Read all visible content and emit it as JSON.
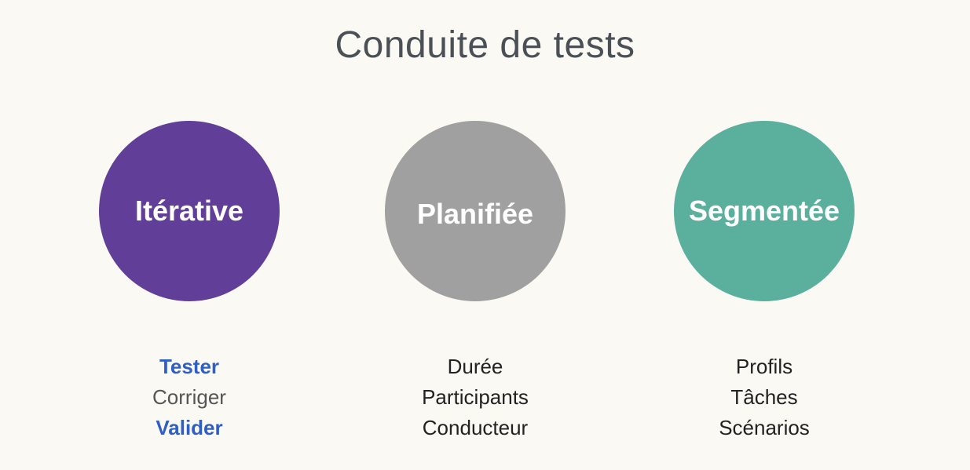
{
  "title": "Conduite de tests",
  "colors": {
    "background": "#faf9f4",
    "title": "#4a5055",
    "circle_iterative": "#613f98",
    "circle_planned": "#a0a0a0",
    "circle_segmented": "#5aaf9d",
    "highlight_text": "#2f5ec7"
  },
  "columns": [
    {
      "circle_label": "Itérative",
      "items": [
        "Tester",
        "Corriger",
        "Valider"
      ],
      "highlighted": [
        true,
        false,
        true
      ]
    },
    {
      "circle_label": "Planifiée",
      "items": [
        "Durée",
        "Participants",
        "Conducteur"
      ],
      "highlighted": [
        false,
        false,
        false
      ]
    },
    {
      "circle_label": "Segmentée",
      "items": [
        "Profils",
        "Tâches",
        "Scénarios"
      ],
      "highlighted": [
        false,
        false,
        false
      ]
    }
  ]
}
